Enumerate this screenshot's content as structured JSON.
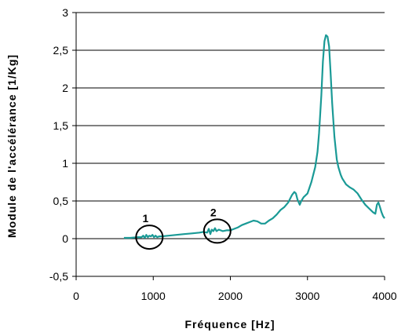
{
  "chart_data": {
    "type": "line",
    "xlabel": "Fréquence [Hz]",
    "ylabel": "Module de l'accélérance [1/Kg]",
    "xlim": [
      0,
      4000
    ],
    "ylim": [
      -0.5,
      3
    ],
    "xticks": [
      0,
      1000,
      2000,
      3000,
      4000
    ],
    "xtick_labels": [
      "0",
      "1000",
      "2000",
      "3000",
      "4000"
    ],
    "yticks": [
      -0.5,
      0,
      0.5,
      1,
      1.5,
      2,
      2.5,
      3
    ],
    "ytick_labels": [
      "-0,5",
      "0",
      "0,5",
      "1",
      "1,5",
      "2",
      "2,5",
      "3"
    ],
    "grid": "horizontal",
    "line_color": "#1a9a96",
    "x": [
      620,
      700,
      800,
      850,
      870,
      890,
      910,
      930,
      950,
      970,
      990,
      1010,
      1030,
      1050,
      1080,
      1100,
      1200,
      1300,
      1400,
      1500,
      1600,
      1650,
      1700,
      1720,
      1740,
      1760,
      1780,
      1800,
      1820,
      1850,
      1900,
      1950,
      2000,
      2050,
      2100,
      2150,
      2200,
      2250,
      2300,
      2350,
      2400,
      2450,
      2500,
      2550,
      2600,
      2650,
      2700,
      2750,
      2800,
      2830,
      2850,
      2870,
      2900,
      2920,
      2950,
      3000,
      3050,
      3100,
      3130,
      3150,
      3180,
      3200,
      3220,
      3240,
      3260,
      3280,
      3300,
      3320,
      3350,
      3380,
      3400,
      3430,
      3450,
      3500,
      3550,
      3600,
      3650,
      3700,
      3750,
      3800,
      3850,
      3880,
      3900,
      3920,
      3940,
      3960,
      3980,
      4000
    ],
    "y": [
      0.01,
      0.01,
      0.02,
      0.02,
      0.04,
      0.01,
      0.05,
      0.02,
      0.04,
      0.03,
      0.05,
      0.02,
      0.04,
      0.02,
      0.03,
      0.03,
      0.04,
      0.05,
      0.06,
      0.07,
      0.08,
      0.09,
      0.08,
      0.13,
      0.06,
      0.12,
      0.1,
      0.14,
      0.1,
      0.12,
      0.1,
      0.11,
      0.11,
      0.13,
      0.15,
      0.18,
      0.2,
      0.22,
      0.24,
      0.23,
      0.2,
      0.2,
      0.24,
      0.27,
      0.32,
      0.38,
      0.42,
      0.48,
      0.58,
      0.62,
      0.6,
      0.52,
      0.45,
      0.5,
      0.55,
      0.6,
      0.75,
      0.95,
      1.15,
      1.4,
      1.9,
      2.35,
      2.62,
      2.7,
      2.68,
      2.55,
      2.2,
      1.8,
      1.35,
      1.05,
      0.95,
      0.85,
      0.8,
      0.72,
      0.68,
      0.65,
      0.6,
      0.52,
      0.45,
      0.4,
      0.35,
      0.33,
      0.45,
      0.48,
      0.42,
      0.35,
      0.3,
      0.27
    ],
    "annotations": [
      {
        "label": "1",
        "x": 950,
        "y": 0.02
      },
      {
        "label": "2",
        "x": 1830,
        "y": 0.1
      }
    ]
  }
}
